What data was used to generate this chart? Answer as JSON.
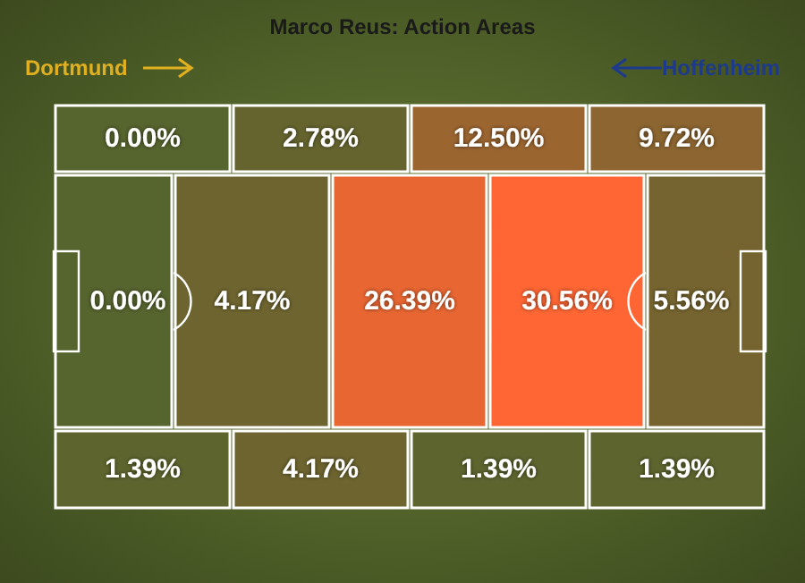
{
  "chart_data": {
    "type": "other",
    "title": "Marco Reus: Action Areas",
    "annotations": [
      "Dortmund",
      "Hoffenheim"
    ],
    "values": [
      0.0,
      2.78,
      12.5,
      9.72,
      0.0,
      4.17,
      26.39,
      30.56,
      5.56,
      1.39,
      4.17,
      1.39,
      1.39
    ],
    "value_labels": [
      "0.00%",
      "2.78%",
      "12.50%",
      "9.72%",
      "0.00%",
      "4.17%",
      "26.39%",
      "30.56%",
      "5.56%",
      "1.39%",
      "4.17%",
      "1.39%",
      "1.39%"
    ]
  }
}
